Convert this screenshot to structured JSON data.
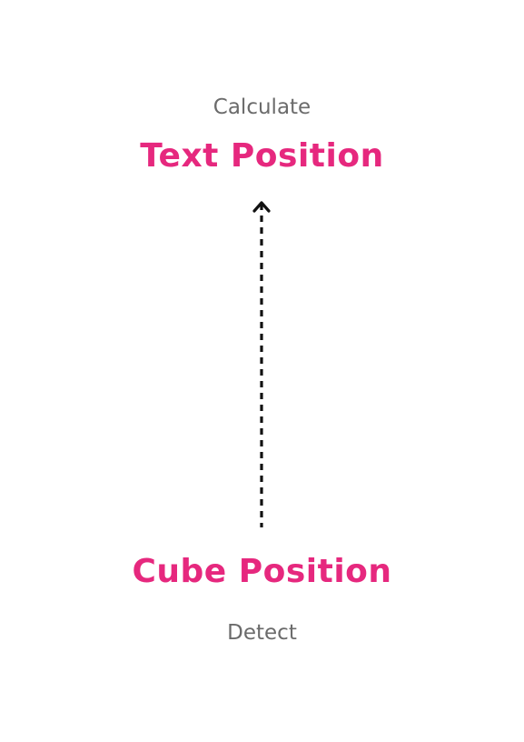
{
  "colors": {
    "accent": "#e6287e",
    "muted": "#6b6b6b",
    "arrow": "#111111"
  },
  "top": {
    "action": "Calculate",
    "target": "Text Position"
  },
  "bottom": {
    "target": "Cube Position",
    "action": "Detect"
  },
  "arrow_icon": "dashed-up-arrow-icon"
}
